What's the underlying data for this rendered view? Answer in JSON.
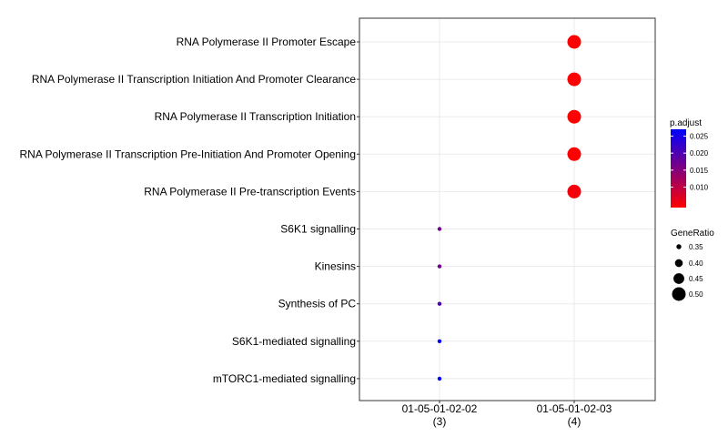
{
  "chart_data": {
    "type": "scatter",
    "x_categories": [
      {
        "label": "01-05-01-02-02",
        "count_label": "(3)"
      },
      {
        "label": "01-05-01-02-03",
        "count_label": "(4)"
      }
    ],
    "y_categories": [
      "RNA Polymerase II Promoter Escape",
      "RNA Polymerase II Transcription Initiation And Promoter Clearance",
      "RNA Polymerase II Transcription Initiation",
      "RNA Polymerase II Transcription Pre-Initiation And Promoter Opening",
      "RNA Polymerase II Pre-transcription Events",
      "S6K1 signalling",
      "Kinesins",
      "Synthesis of PC",
      "S6K1-mediated signalling",
      "mTORC1-mediated signalling"
    ],
    "points": [
      {
        "x": "01-05-01-02-03",
        "y": "RNA Polymerase II Promoter Escape",
        "gene_ratio": 0.5,
        "p_adjust": 0.004
      },
      {
        "x": "01-05-01-02-03",
        "y": "RNA Polymerase II Transcription Initiation And Promoter Clearance",
        "gene_ratio": 0.5,
        "p_adjust": 0.004
      },
      {
        "x": "01-05-01-02-03",
        "y": "RNA Polymerase II Transcription Initiation",
        "gene_ratio": 0.5,
        "p_adjust": 0.004
      },
      {
        "x": "01-05-01-02-03",
        "y": "RNA Polymerase II Transcription Pre-Initiation And Promoter Opening",
        "gene_ratio": 0.5,
        "p_adjust": 0.004
      },
      {
        "x": "01-05-01-02-03",
        "y": "RNA Polymerase II Pre-transcription Events",
        "gene_ratio": 0.5,
        "p_adjust": 0.005
      },
      {
        "x": "01-05-01-02-02",
        "y": "S6K1 signalling",
        "gene_ratio": 0.333,
        "p_adjust": 0.017
      },
      {
        "x": "01-05-01-02-02",
        "y": "Kinesins",
        "gene_ratio": 0.333,
        "p_adjust": 0.017
      },
      {
        "x": "01-05-01-02-02",
        "y": "Synthesis of PC",
        "gene_ratio": 0.333,
        "p_adjust": 0.02
      },
      {
        "x": "01-05-01-02-02",
        "y": "S6K1-mediated signalling",
        "gene_ratio": 0.333,
        "p_adjust": 0.027
      },
      {
        "x": "01-05-01-02-02",
        "y": "mTORC1-mediated signalling",
        "gene_ratio": 0.333,
        "p_adjust": 0.027
      }
    ],
    "color_legend": {
      "title": "p.adjust",
      "ticks": [
        "0.025",
        "0.020",
        "0.015",
        "0.010"
      ],
      "tick_values": [
        0.025,
        0.02,
        0.015,
        0.01
      ],
      "range": [
        0.004,
        0.027
      ],
      "low_color": "#FF0000",
      "high_color": "#0000FF"
    },
    "size_legend": {
      "title": "GeneRatio",
      "labels": [
        "0.35",
        "0.40",
        "0.45",
        "0.50"
      ],
      "values": [
        0.35,
        0.4,
        0.45,
        0.5
      ]
    },
    "grid": true,
    "legend_position": "right"
  }
}
